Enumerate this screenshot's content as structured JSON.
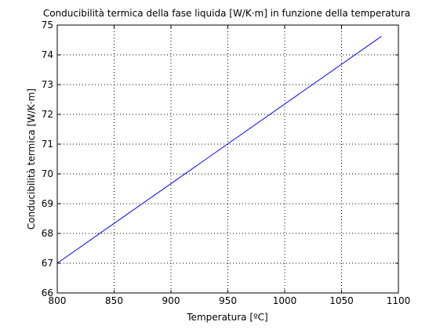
{
  "chart_data": {
    "type": "line",
    "title": "Conducibilità termica della fase liquida [W/K·m] in funzione della temperatura",
    "xlabel": "Temperatura [ºC]",
    "ylabel": "Conducibilità termica [W/K·m]",
    "xlim": [
      800,
      1100
    ],
    "ylim": [
      66,
      75
    ],
    "xticks": [
      800,
      850,
      900,
      950,
      1000,
      1050,
      1100
    ],
    "yticks": [
      66,
      67,
      68,
      69,
      70,
      71,
      72,
      73,
      74,
      75
    ],
    "grid": true,
    "series": [
      {
        "color": "#0000ff",
        "x": [
          800,
          1085
        ],
        "y": [
          67.0,
          74.62
        ]
      }
    ]
  }
}
